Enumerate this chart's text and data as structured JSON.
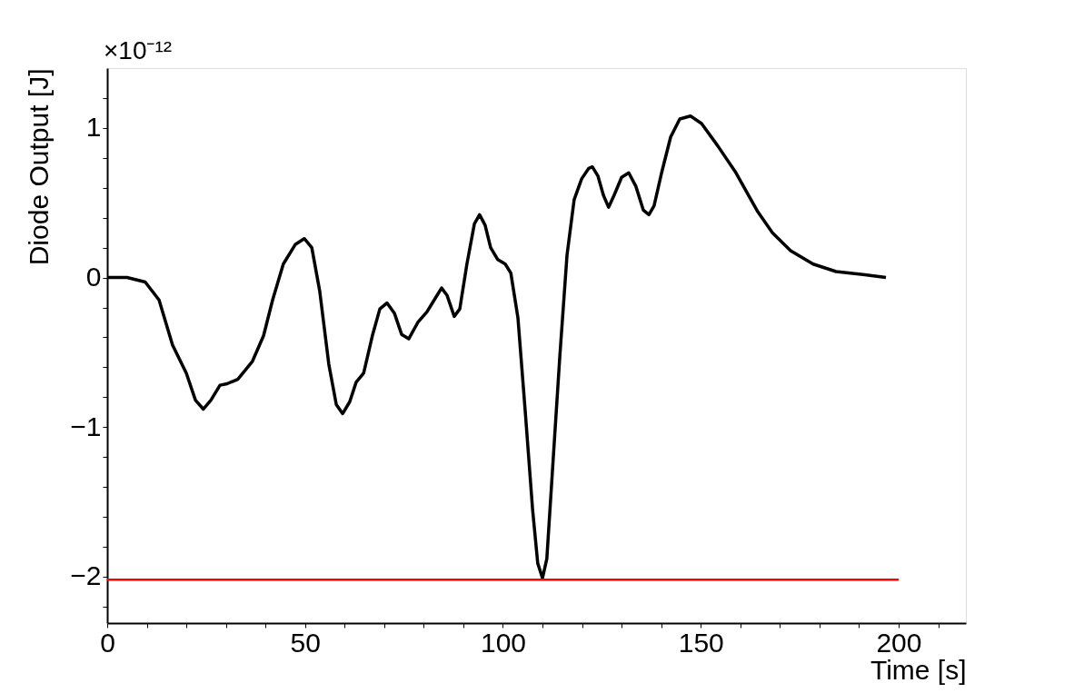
{
  "chart_data": {
    "type": "line",
    "xlabel": "Time [s]",
    "ylabel": "Diode Output [J]",
    "annotations": [
      "×10⁻¹²"
    ],
    "xlim": [
      0,
      217
    ],
    "ylim": [
      -2.31,
      1.4
    ],
    "xticks": [
      0,
      {
        "value": 10,
        "label": null
      },
      {
        "value": 20,
        "label": null
      },
      {
        "value": 30,
        "label": null
      },
      {
        "value": 40,
        "label": null
      },
      50,
      {
        "value": 60,
        "label": null
      },
      {
        "value": 70,
        "label": null
      },
      {
        "value": 80,
        "label": null
      },
      {
        "value": 90,
        "label": null
      },
      100,
      {
        "value": 110,
        "label": null
      },
      {
        "value": 120,
        "label": null
      },
      {
        "value": 130,
        "label": null
      },
      {
        "value": 140,
        "label": null
      },
      150,
      {
        "value": 160,
        "label": null
      },
      {
        "value": 170,
        "label": null
      },
      {
        "value": 180,
        "label": null
      },
      {
        "value": 190,
        "label": null
      },
      200,
      {
        "value": 210,
        "label": null
      }
    ],
    "yticks": [
      {
        "value": -2.2,
        "label": null
      },
      {
        "value": -2,
        "label": "−2"
      },
      {
        "value": -1.8,
        "label": null
      },
      {
        "value": -1.6,
        "label": null
      },
      {
        "value": -1.4,
        "label": null
      },
      {
        "value": -1.2,
        "label": null
      },
      {
        "value": -1,
        "label": "−1"
      },
      {
        "value": -0.8,
        "label": null
      },
      {
        "value": -0.6,
        "label": null
      },
      {
        "value": -0.4,
        "label": null
      },
      {
        "value": -0.2,
        "label": null
      },
      0,
      {
        "value": 0.2,
        "label": null
      },
      {
        "value": 0.4,
        "label": null
      },
      {
        "value": 0.6,
        "label": null
      },
      {
        "value": 0.8,
        "label": null
      },
      1,
      {
        "value": 1.2,
        "label": null
      }
    ],
    "grid": false,
    "marker": "none",
    "line_style": "solid",
    "series": [
      {
        "color": "#000000",
        "x": [
          0,
          5,
          9.6,
          13.1,
          16.5,
          20,
          22.3,
          24.3,
          26.2,
          28.5,
          30.3,
          33,
          36.7,
          39.5,
          41.8,
          44.5,
          47.5,
          49.8,
          51.7,
          53.7,
          56,
          57.9,
          59.5,
          61.3,
          62.9,
          64.8,
          67,
          68.9,
          70.7,
          72.6,
          74.4,
          76.2,
          78.5,
          80.8,
          83.1,
          84.5,
          85.9,
          87.7,
          89.1,
          90.9,
          92.8,
          94.1,
          95.5,
          96.9,
          98.7,
          100.6,
          102,
          103.8,
          105.6,
          107.5,
          108.8,
          110,
          111.1,
          112.5,
          114.4,
          116.2,
          118,
          119.9,
          121.7,
          122.6,
          124,
          125.4,
          126.7,
          128.1,
          130,
          131.8,
          133.6,
          135.5,
          136.9,
          138.2,
          140.1,
          142.4,
          144.7,
          147.4,
          150.2,
          154.3,
          158.9,
          164.4,
          168.1,
          172.7,
          178.4,
          184.2,
          191,
          196.8
        ],
        "values": [
          0,
          0,
          -0.03,
          -0.15,
          -0.45,
          -0.64,
          -0.82,
          -0.88,
          -0.82,
          -0.72,
          -0.71,
          -0.68,
          -0.56,
          -0.39,
          -0.15,
          0.09,
          0.22,
          0.26,
          0.2,
          -0.09,
          -0.58,
          -0.85,
          -0.91,
          -0.83,
          -0.7,
          -0.64,
          -0.39,
          -0.21,
          -0.17,
          -0.24,
          -0.38,
          -0.41,
          -0.3,
          -0.23,
          -0.13,
          -0.07,
          -0.12,
          -0.26,
          -0.21,
          0.09,
          0.36,
          0.42,
          0.35,
          0.2,
          0.12,
          0.09,
          0.03,
          -0.27,
          -0.88,
          -1.55,
          -1.91,
          -2.01,
          -1.88,
          -1.3,
          -0.52,
          0.15,
          0.52,
          0.66,
          0.73,
          0.74,
          0.68,
          0.55,
          0.47,
          0.55,
          0.67,
          0.7,
          0.61,
          0.45,
          0.42,
          0.48,
          0.7,
          0.94,
          1.06,
          1.08,
          1.03,
          0.88,
          0.7,
          0.44,
          0.3,
          0.18,
          0.09,
          0.04,
          0.02,
          0
        ]
      },
      {
        "color": "#ff0000",
        "x": [
          0,
          200
        ],
        "values": [
          -2.02,
          -2.02
        ]
      }
    ]
  }
}
